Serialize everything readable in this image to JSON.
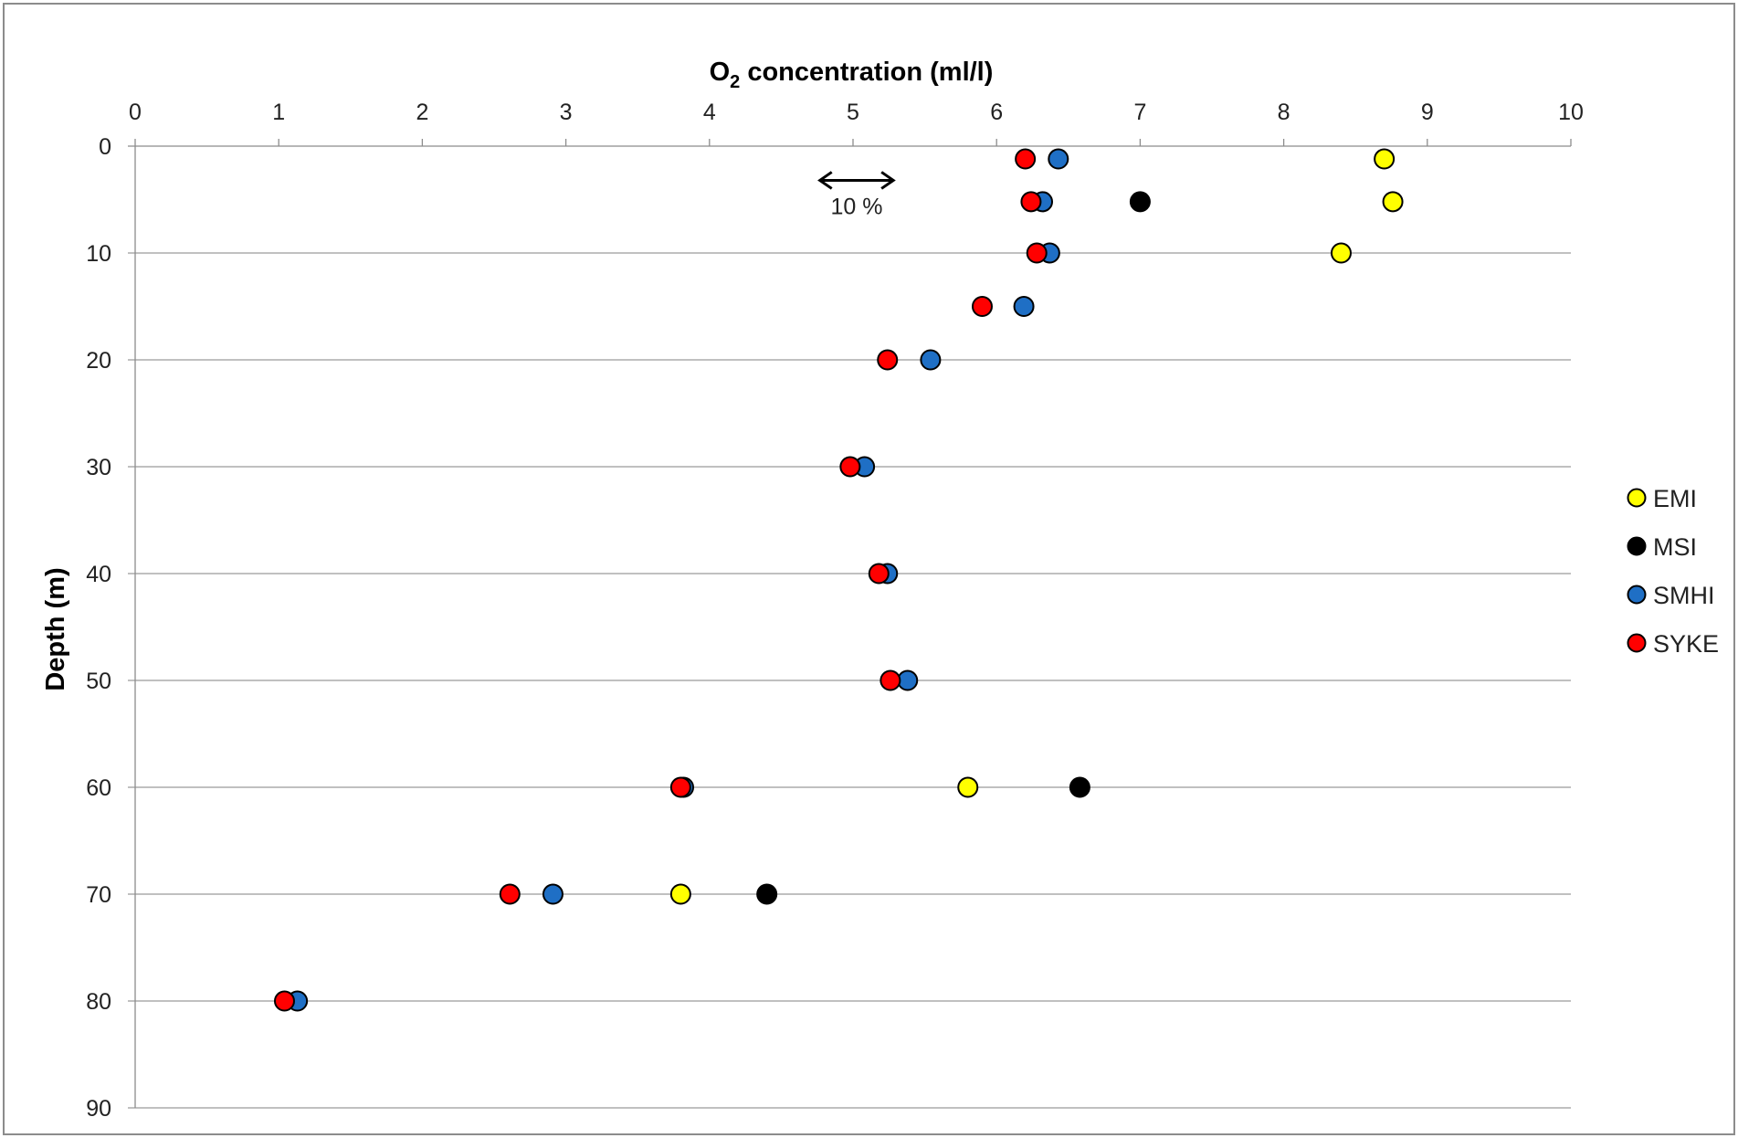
{
  "chart_data": {
    "type": "scatter",
    "title": "",
    "xlabel_main": "O",
    "xlabel_sub": "2",
    "xlabel_rest": " concentration (ml/l)",
    "ylabel": "Depth (m)",
    "xlim": [
      0,
      10
    ],
    "ylim": [
      0,
      90
    ],
    "y_inverted": true,
    "x_axis_position": "top",
    "x_ticks": [
      "0",
      "1",
      "2",
      "3",
      "4",
      "5",
      "6",
      "7",
      "8",
      "9",
      "10"
    ],
    "y_ticks": [
      "0",
      "10",
      "20",
      "30",
      "40",
      "50",
      "60",
      "70",
      "80",
      "90"
    ],
    "grid": "horizontal",
    "legend_position": "right",
    "annotation": {
      "text": "10 %",
      "x_from": 4.75,
      "x_to": 5.3,
      "y": 3.2
    },
    "series": [
      {
        "name": "EMI",
        "color": "#ffff00",
        "points": [
          [
            8.7,
            1.2
          ],
          [
            8.76,
            5.2
          ],
          [
            8.4,
            10
          ],
          [
            5.8,
            60
          ],
          [
            3.8,
            70
          ]
        ]
      },
      {
        "name": "MSI",
        "color": "#000000",
        "points": [
          [
            7.0,
            5.2
          ],
          [
            6.58,
            60
          ],
          [
            4.4,
            70
          ]
        ]
      },
      {
        "name": "SMHI",
        "color": "#1f6fc5",
        "points": [
          [
            6.43,
            1.2
          ],
          [
            6.32,
            5.2
          ],
          [
            6.37,
            10
          ],
          [
            6.19,
            15
          ],
          [
            5.54,
            20
          ],
          [
            5.08,
            30
          ],
          [
            5.24,
            40
          ],
          [
            5.38,
            50
          ],
          [
            3.82,
            60
          ],
          [
            2.91,
            70
          ],
          [
            1.13,
            80
          ]
        ]
      },
      {
        "name": "SYKE",
        "color": "#ff0000",
        "points": [
          [
            6.2,
            1.2
          ],
          [
            6.24,
            5.2
          ],
          [
            6.28,
            10
          ],
          [
            5.9,
            15
          ],
          [
            5.24,
            20
          ],
          [
            4.98,
            30
          ],
          [
            5.18,
            40
          ],
          [
            5.26,
            50
          ],
          [
            3.8,
            60
          ],
          [
            2.61,
            70
          ],
          [
            1.04,
            80
          ]
        ]
      }
    ]
  }
}
